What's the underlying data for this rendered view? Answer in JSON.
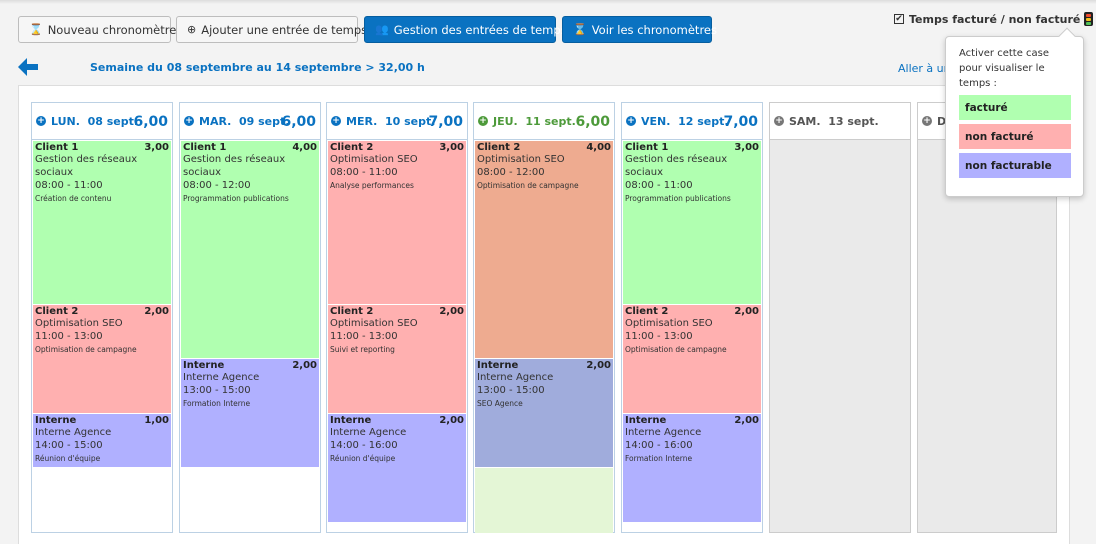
{
  "toolbar": {
    "new_timer": "Nouveau chronomètre",
    "add_entry": "Ajouter une entrée de temps",
    "manage_entries": "Gestion des entrées de temps",
    "view_timers": "Voir les chronomètres"
  },
  "billing_toggle": {
    "label": "Temps facturé / non facturé",
    "checked": true
  },
  "week": {
    "label": "Semaine du 08 septembre au 14 septembre > 32,00 h",
    "goto_label": "Aller à un"
  },
  "popover": {
    "text": "Activer cette case pour visualiser le temps :",
    "legend": [
      {
        "label": "facturé",
        "color": "#b0ffb0"
      },
      {
        "label": "non facturé",
        "color": "#ffb0b0"
      },
      {
        "label": "non facturable",
        "color": "#b0b0ff"
      }
    ]
  },
  "days": [
    {
      "name": "LUN.  08 sept.",
      "total": "6,00",
      "entries": [
        {
          "client": "Client 1",
          "hours": "3,00",
          "project": "Gestion des réseaux sociaux",
          "time": "08:00 - 11:00",
          "task": "Création de contenu"
        },
        {
          "client": "Client 2",
          "hours": "2,00",
          "project": "Optimisation SEO",
          "time": "11:00 - 13:00",
          "task": "Optimisation de campagne"
        },
        {
          "client": "Interne",
          "hours": "1,00",
          "project": "Interne Agence",
          "time": "14:00 - 15:00",
          "task": "Réunion d'équipe"
        }
      ]
    },
    {
      "name": "MAR.  09 sept.",
      "total": "6,00",
      "entries": [
        {
          "client": "Client 1",
          "hours": "4,00",
          "project": "Gestion des réseaux sociaux",
          "time": "08:00 - 12:00",
          "task": "Programmation publications"
        },
        {
          "client": "Interne",
          "hours": "2,00",
          "project": "Interne Agence",
          "time": "13:00 - 15:00",
          "task": "Formation Interne"
        }
      ]
    },
    {
      "name": "MER.  10 sept.",
      "total": "7,00",
      "entries": [
        {
          "client": "Client 2",
          "hours": "3,00",
          "project": "Optimisation SEO",
          "time": "08:00 - 11:00",
          "task": "Analyse performances"
        },
        {
          "client": "Client 2",
          "hours": "2,00",
          "project": "Optimisation SEO",
          "time": "11:00 - 13:00",
          "task": "Suivi et reporting"
        },
        {
          "client": "Interne",
          "hours": "2,00",
          "project": "Interne Agence",
          "time": "14:00 - 16:00",
          "task": "Réunion d'équipe"
        }
      ]
    },
    {
      "name": "JEU.  11 sept.",
      "total": "6,00",
      "entries": [
        {
          "client": "Client 2",
          "hours": "4,00",
          "project": "Optimisation SEO",
          "time": "08:00 - 12:00",
          "task": "Optimisation de campagne"
        },
        {
          "client": "Interne",
          "hours": "2,00",
          "project": "Interne Agence",
          "time": "13:00 - 15:00",
          "task": "SEO Agence"
        }
      ]
    },
    {
      "name": "VEN.  12 sept.",
      "total": "7,00",
      "entries": [
        {
          "client": "Client 1",
          "hours": "3,00",
          "project": "Gestion des réseaux sociaux",
          "time": "08:00 - 11:00",
          "task": "Programmation publications"
        },
        {
          "client": "Client 2",
          "hours": "2,00",
          "project": "Optimisation SEO",
          "time": "11:00 - 13:00",
          "task": "Optimisation de campagne"
        },
        {
          "client": "Interne",
          "hours": "2,00",
          "project": "Interne Agence",
          "time": "14:00 - 16:00",
          "task": "Formation Interne"
        }
      ]
    },
    {
      "name": "SAM.  13 sept.",
      "total": "",
      "entries": []
    },
    {
      "name": "DI",
      "total": "",
      "entries": []
    }
  ]
}
